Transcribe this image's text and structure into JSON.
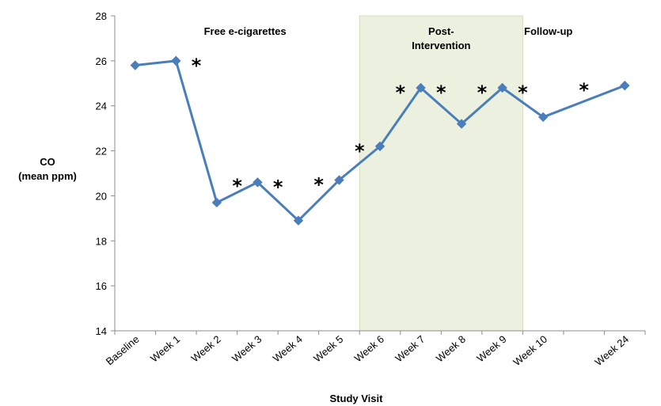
{
  "chart_data": {
    "type": "line",
    "title": "",
    "xlabel": "Study Visit",
    "ylabel_lines": [
      "CO",
      "(mean ppm)"
    ],
    "ylim": [
      14,
      28
    ],
    "yticks": [
      14,
      16,
      18,
      20,
      22,
      24,
      26,
      28
    ],
    "grid": false,
    "categories": [
      "Baseline",
      "Week 1",
      "Week 2",
      "Week 3",
      "Week 4",
      "Week 5",
      "Week 6",
      "Week 7",
      "Week 8",
      "Week 9",
      "Week 10",
      "",
      "Week 24"
    ],
    "series": [
      {
        "color": "#4a7ebb",
        "marker": "diamond",
        "points": [
          {
            "x": "Baseline",
            "y": 25.8
          },
          {
            "x": "Week 1",
            "y": 26.0
          },
          {
            "x": "Week 2",
            "y": 19.7
          },
          {
            "x": "Week 3",
            "y": 20.6
          },
          {
            "x": "Week 4",
            "y": 18.9
          },
          {
            "x": "Week 5",
            "y": 20.7
          },
          {
            "x": "Week 6",
            "y": 22.2
          },
          {
            "x": "Week 7",
            "y": 24.8
          },
          {
            "x": "Week 8",
            "y": 23.2
          },
          {
            "x": "Week 9",
            "y": 24.8
          },
          {
            "x": "Week 10",
            "y": 23.5
          },
          {
            "x": "Week 24",
            "y": 24.9
          }
        ]
      }
    ],
    "significance_marker": "*",
    "significant_visits": [
      "Week 2",
      "Week 3",
      "Week 4",
      "Week 5",
      "Week 6",
      "Week 7",
      "Week 8",
      "Week 9",
      "Week 10",
      "Week 24"
    ],
    "phases": [
      {
        "label_lines": [
          "Free e-cigarettes"
        ],
        "shaded": false
      },
      {
        "label_lines": [
          "Post-",
          "Intervention"
        ],
        "shaded": true,
        "from": "Week 6",
        "to": "Week 10",
        "fill": "#ebf1de"
      },
      {
        "label_lines": [
          "Follow-up"
        ],
        "shaded": false
      }
    ]
  }
}
